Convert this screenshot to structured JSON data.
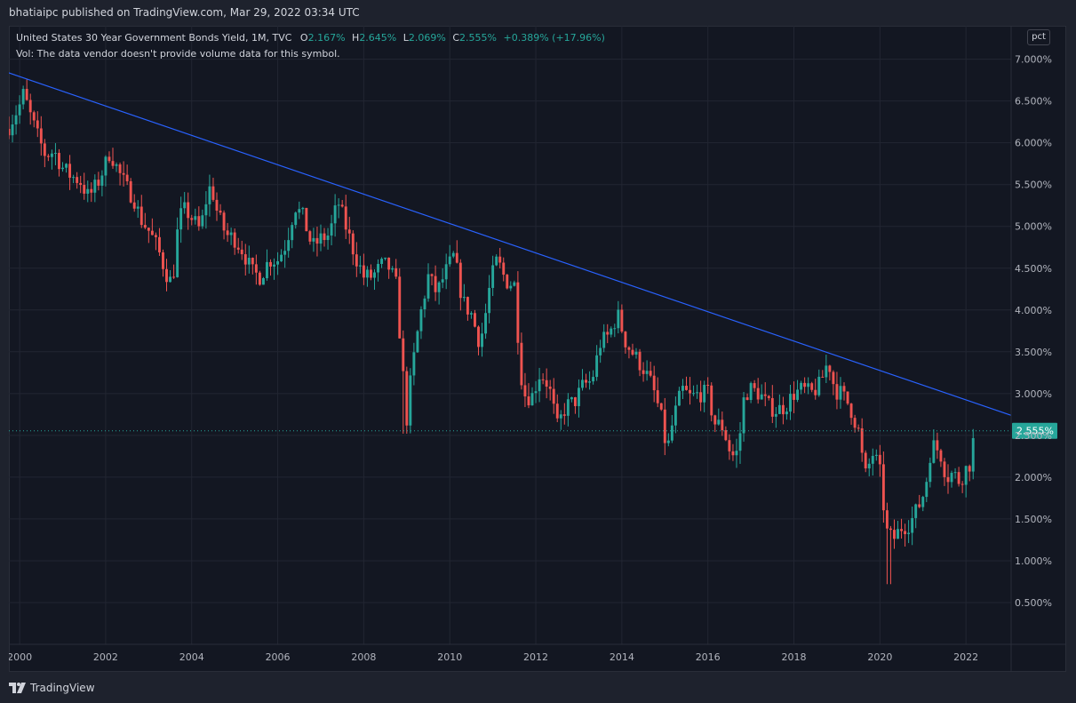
{
  "header": {
    "published": "bhatiaipc published on TradingView.com, Mar 29, 2022 03:34 UTC"
  },
  "legend": {
    "symbol": "United States 30 Year Government Bonds Yield, 1M, TVC",
    "o_label": "O",
    "o_value": "2.167%",
    "h_label": "H",
    "h_value": "2.645%",
    "l_label": "L",
    "l_value": "2.069%",
    "c_label": "C",
    "c_value": "2.555%",
    "change": "+0.389% (+17.96%)",
    "vol_note": "Vol: The data vendor doesn't provide volume data for this symbol."
  },
  "scale_button": "pct",
  "footer": {
    "brand": "TradingView"
  },
  "colors": {
    "up": "#26a69a",
    "down": "#ef5350",
    "trendline": "#2962ff",
    "background": "#131722",
    "grid": "#1e222d"
  },
  "chart_data": {
    "type": "candlestick",
    "x_range": [
      1999.75,
      2023.05
    ],
    "ylim": [
      0.0,
      7.4
    ],
    "y_ticks": [
      {
        "value": 7.0,
        "label": "7.000%"
      },
      {
        "value": 6.5,
        "label": "6.500%"
      },
      {
        "value": 6.0,
        "label": "6.000%"
      },
      {
        "value": 5.5,
        "label": "5.500%"
      },
      {
        "value": 5.0,
        "label": "5.000%"
      },
      {
        "value": 4.5,
        "label": "4.500%"
      },
      {
        "value": 4.0,
        "label": "4.000%"
      },
      {
        "value": 3.5,
        "label": "3.500%"
      },
      {
        "value": 3.0,
        "label": "3.000%"
      },
      {
        "value": 2.5,
        "label": "2.500%"
      },
      {
        "value": 2.0,
        "label": "2.000%"
      },
      {
        "value": 1.5,
        "label": "1.500%"
      },
      {
        "value": 1.0,
        "label": "1.000%"
      },
      {
        "value": 0.5,
        "label": "0.500%"
      }
    ],
    "x_ticks": [
      {
        "value": 2000,
        "label": "2000"
      },
      {
        "value": 2002,
        "label": "2002"
      },
      {
        "value": 2004,
        "label": "2004"
      },
      {
        "value": 2006,
        "label": "2006"
      },
      {
        "value": 2008,
        "label": "2008"
      },
      {
        "value": 2010,
        "label": "2010"
      },
      {
        "value": 2012,
        "label": "2012"
      },
      {
        "value": 2014,
        "label": "2014"
      },
      {
        "value": 2016,
        "label": "2016"
      },
      {
        "value": 2018,
        "label": "2018"
      },
      {
        "value": 2020,
        "label": "2020"
      },
      {
        "value": 2022,
        "label": "2022"
      }
    ],
    "last_price": {
      "value": 2.555,
      "label": "2.555%"
    },
    "trendline": [
      [
        1999.5,
        6.88
      ],
      [
        2023.05,
        2.74
      ]
    ],
    "closes": [
      [
        1999.5,
        6.1
      ],
      [
        1999.75,
        6.2
      ],
      [
        2000.0,
        6.45
      ],
      [
        2000.1,
        6.6
      ],
      [
        2000.2,
        6.4
      ],
      [
        2000.4,
        6.1
      ],
      [
        2000.6,
        5.85
      ],
      [
        2000.8,
        5.9
      ],
      [
        2001.0,
        5.7
      ],
      [
        2001.2,
        5.6
      ],
      [
        2001.4,
        5.55
      ],
      [
        2001.6,
        5.35
      ],
      [
        2001.8,
        5.5
      ],
      [
        2002.0,
        5.75
      ],
      [
        2002.1,
        5.9
      ],
      [
        2002.3,
        5.65
      ],
      [
        2002.5,
        5.45
      ],
      [
        2002.65,
        5.35
      ],
      [
        2002.8,
        5.1
      ],
      [
        2003.0,
        4.95
      ],
      [
        2003.2,
        4.75
      ],
      [
        2003.4,
        4.45
      ],
      [
        2003.55,
        4.3
      ],
      [
        2003.7,
        5.1
      ],
      [
        2003.85,
        5.2
      ],
      [
        2004.0,
        5.1
      ],
      [
        2004.2,
        4.95
      ],
      [
        2004.35,
        5.35
      ],
      [
        2004.45,
        5.5
      ],
      [
        2004.6,
        5.15
      ],
      [
        2004.8,
        4.9
      ],
      [
        2005.0,
        4.85
      ],
      [
        2005.2,
        4.7
      ],
      [
        2005.4,
        4.45
      ],
      [
        2005.6,
        4.4
      ],
      [
        2005.8,
        4.6
      ],
      [
        2006.0,
        4.6
      ],
      [
        2006.2,
        4.8
      ],
      [
        2006.4,
        5.25
      ],
      [
        2006.6,
        5.1
      ],
      [
        2006.8,
        4.75
      ],
      [
        2007.0,
        4.85
      ],
      [
        2007.2,
        4.9
      ],
      [
        2007.4,
        5.3
      ],
      [
        2007.55,
        5.05
      ],
      [
        2007.8,
        4.65
      ],
      [
        2008.0,
        4.4
      ],
      [
        2008.2,
        4.4
      ],
      [
        2008.45,
        4.55
      ],
      [
        2008.6,
        4.5
      ],
      [
        2008.75,
        4.3
      ],
      [
        2008.9,
        3.3
      ],
      [
        2009.0,
        2.7
      ],
      [
        2009.1,
        3.2
      ],
      [
        2009.3,
        3.9
      ],
      [
        2009.5,
        4.4
      ],
      [
        2009.7,
        4.2
      ],
      [
        2009.9,
        4.45
      ],
      [
        2010.1,
        4.65
      ],
      [
        2010.3,
        4.1
      ],
      [
        2010.5,
        3.95
      ],
      [
        2010.7,
        3.6
      ],
      [
        2010.8,
        3.85
      ],
      [
        2010.95,
        4.35
      ],
      [
        2011.1,
        4.6
      ],
      [
        2011.3,
        4.35
      ],
      [
        2011.5,
        4.3
      ],
      [
        2011.6,
        3.6
      ],
      [
        2011.7,
        3.0
      ],
      [
        2011.9,
        2.95
      ],
      [
        2012.1,
        3.25
      ],
      [
        2012.3,
        3.1
      ],
      [
        2012.5,
        2.6
      ],
      [
        2012.7,
        2.85
      ],
      [
        2012.9,
        2.9
      ],
      [
        2013.1,
        3.1
      ],
      [
        2013.3,
        3.15
      ],
      [
        2013.5,
        3.6
      ],
      [
        2013.7,
        3.7
      ],
      [
        2013.9,
        3.95
      ],
      [
        2014.1,
        3.6
      ],
      [
        2014.3,
        3.45
      ],
      [
        2014.5,
        3.3
      ],
      [
        2014.7,
        3.1
      ],
      [
        2014.9,
        2.75
      ],
      [
        2015.05,
        2.3
      ],
      [
        2015.2,
        2.7
      ],
      [
        2015.4,
        3.05
      ],
      [
        2015.6,
        2.95
      ],
      [
        2015.8,
        3.0
      ],
      [
        2016.0,
        3.0
      ],
      [
        2016.15,
        2.65
      ],
      [
        2016.35,
        2.6
      ],
      [
        2016.55,
        2.25
      ],
      [
        2016.7,
        2.3
      ],
      [
        2016.85,
        3.0
      ],
      [
        2017.0,
        3.05
      ],
      [
        2017.2,
        3.0
      ],
      [
        2017.4,
        2.85
      ],
      [
        2017.6,
        2.8
      ],
      [
        2017.8,
        2.85
      ],
      [
        2018.0,
        3.0
      ],
      [
        2018.2,
        3.05
      ],
      [
        2018.4,
        3.0
      ],
      [
        2018.6,
        3.1
      ],
      [
        2018.8,
        3.4
      ],
      [
        2018.95,
        3.05
      ],
      [
        2019.1,
        3.0
      ],
      [
        2019.3,
        2.85
      ],
      [
        2019.5,
        2.55
      ],
      [
        2019.65,
        2.0
      ],
      [
        2019.85,
        2.3
      ],
      [
        2020.0,
        2.05
      ],
      [
        2020.15,
        1.35
      ],
      [
        2020.3,
        1.25
      ],
      [
        2020.5,
        1.4
      ],
      [
        2020.7,
        1.45
      ],
      [
        2020.9,
        1.65
      ],
      [
        2021.05,
        1.85
      ],
      [
        2021.2,
        2.4
      ],
      [
        2021.4,
        2.3
      ],
      [
        2021.55,
        2.0
      ],
      [
        2021.7,
        2.05
      ],
      [
        2021.85,
        1.95
      ],
      [
        2022.0,
        2.1
      ],
      [
        2022.1,
        2.17
      ],
      [
        2022.2,
        2.555
      ]
    ]
  }
}
